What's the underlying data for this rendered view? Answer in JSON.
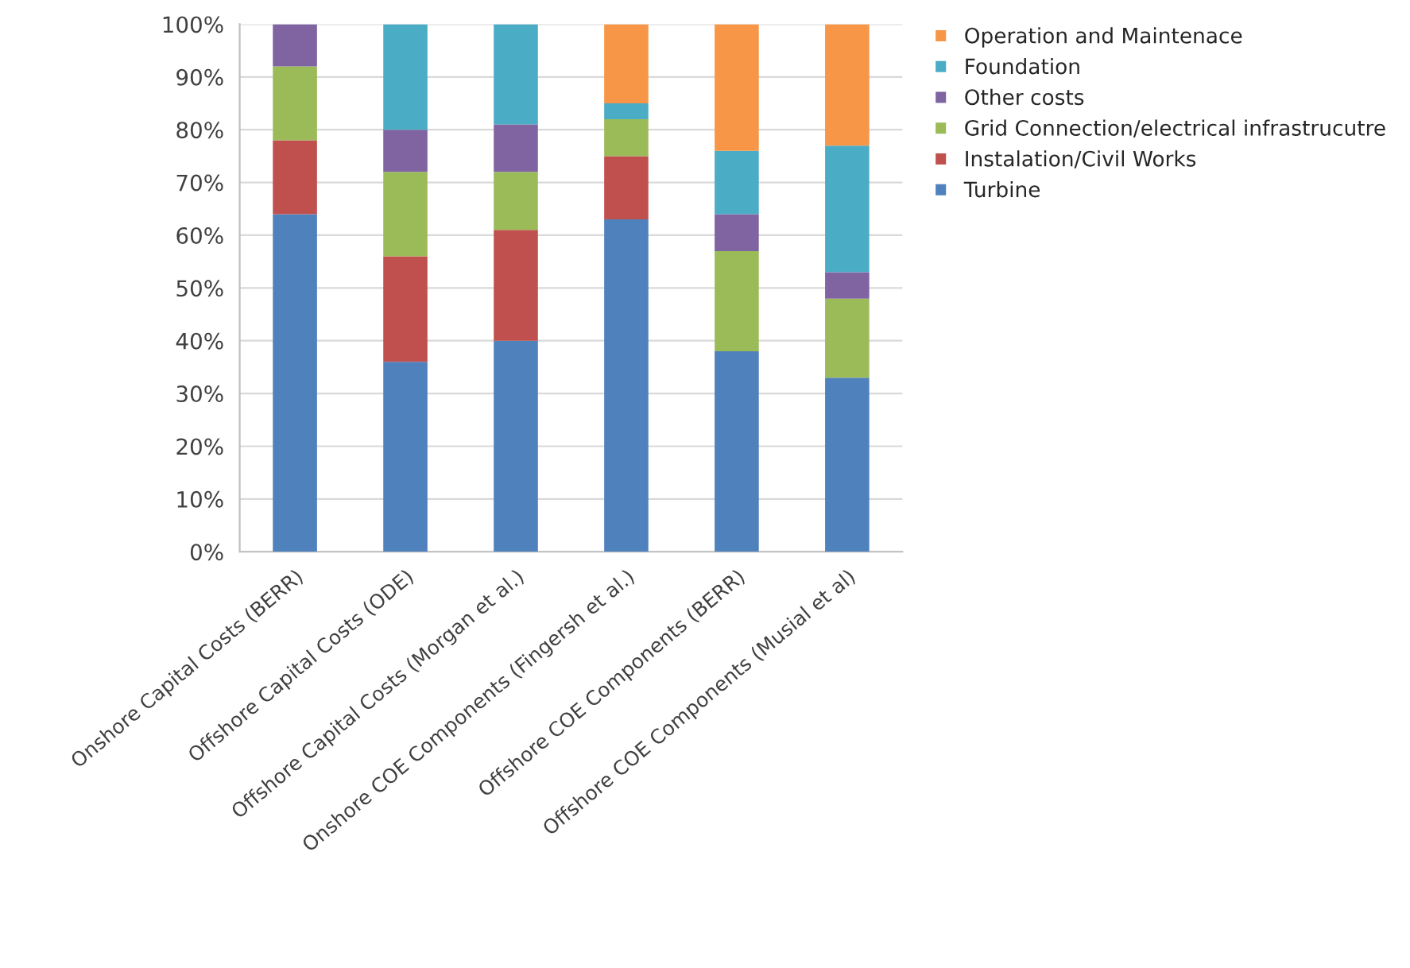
{
  "chart_data": {
    "type": "bar",
    "stacked": true,
    "categories": [
      "Onshore Capital Costs (BERR)",
      "Offshore Capital Costs (ODE)",
      "Offshore Capital Costs (Morgan et al.)",
      "Onshore COE Components (Fingersh et al.)",
      "Offshore COE Components (BERR)",
      "Offshore COE Components (Musial et al)"
    ],
    "series": [
      {
        "name": "Turbine",
        "color": "#4f81bd",
        "values": [
          64,
          36,
          40,
          63,
          38,
          33
        ]
      },
      {
        "name": "Instalation/Civil Works",
        "color": "#c0504d",
        "values": [
          14,
          20,
          21,
          12,
          null,
          null
        ]
      },
      {
        "name": "Grid Connection/electrical infrastrucutre",
        "color": "#9bbb59",
        "values": [
          14,
          16,
          11,
          7,
          19,
          15
        ]
      },
      {
        "name": "Other costs",
        "color": "#8064a2",
        "values": [
          8,
          8,
          9,
          null,
          7,
          5
        ]
      },
      {
        "name": "Foundation",
        "color": "#4bacc6",
        "values": [
          null,
          20,
          19,
          3,
          12,
          24
        ]
      },
      {
        "name": "Operation and Maintenace",
        "color": "#f79646",
        "values": [
          null,
          null,
          null,
          15,
          24,
          23
        ]
      }
    ],
    "ylim": [
      0,
      100
    ],
    "yticks": [
      {
        "value": 0,
        "label": "0%"
      },
      {
        "value": 10,
        "label": "10%"
      },
      {
        "value": 20,
        "label": "20%"
      },
      {
        "value": 30,
        "label": "30%"
      },
      {
        "value": 40,
        "label": "40%"
      },
      {
        "value": 50,
        "label": "50%"
      },
      {
        "value": 60,
        "label": "60%"
      },
      {
        "value": 70,
        "label": "70%"
      },
      {
        "value": 80,
        "label": "80%"
      },
      {
        "value": 90,
        "label": "90%"
      },
      {
        "value": 100,
        "label": "100%"
      }
    ],
    "grid": "y",
    "legend": "right"
  }
}
